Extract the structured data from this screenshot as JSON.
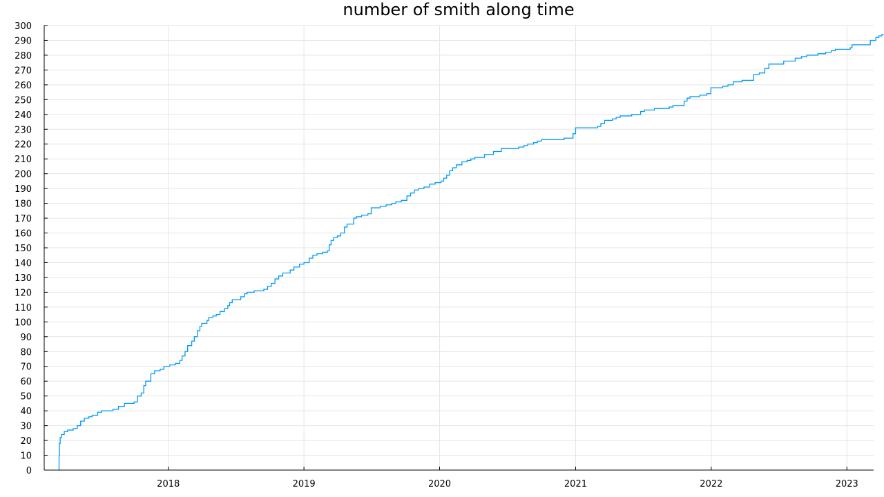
{
  "chart_data": {
    "type": "line",
    "title": "number of smith along time",
    "xlabel": "",
    "ylabel": "",
    "x_tick_labels": [
      "2018",
      "2019",
      "2020",
      "2021",
      "2022",
      "2023"
    ],
    "y_tick_labels": [
      "0",
      "10",
      "20",
      "30",
      "40",
      "50",
      "60",
      "70",
      "80",
      "90",
      "100",
      "110",
      "120",
      "130",
      "140",
      "150",
      "160",
      "170",
      "180",
      "190",
      "200",
      "210",
      "220",
      "230",
      "240",
      "250",
      "260",
      "270",
      "280",
      "290",
      "300"
    ],
    "ylim": [
      0,
      300
    ],
    "xlim": [
      "2017-02-01",
      "2023-03-14"
    ],
    "grid": true,
    "legend": "none",
    "step": true,
    "series": [
      {
        "color": "#009af9",
        "points": [
          [
            "2017-03-12",
            0
          ],
          [
            "2017-03-13",
            10
          ],
          [
            "2017-03-14",
            18
          ],
          [
            "2017-03-16",
            22
          ],
          [
            "2017-03-20",
            24
          ],
          [
            "2017-03-27",
            26
          ],
          [
            "2017-04-05",
            27
          ],
          [
            "2017-04-20",
            28
          ],
          [
            "2017-05-01",
            30
          ],
          [
            "2017-05-10",
            33
          ],
          [
            "2017-05-20",
            35
          ],
          [
            "2017-06-01",
            36
          ],
          [
            "2017-06-10",
            37
          ],
          [
            "2017-06-25",
            39
          ],
          [
            "2017-07-05",
            40
          ],
          [
            "2017-08-05",
            41
          ],
          [
            "2017-08-20",
            43
          ],
          [
            "2017-09-05",
            45
          ],
          [
            "2017-09-25",
            45
          ],
          [
            "2017-10-01",
            46
          ],
          [
            "2017-10-10",
            50
          ],
          [
            "2017-10-20",
            52
          ],
          [
            "2017-10-27",
            57
          ],
          [
            "2017-11-01",
            60
          ],
          [
            "2017-11-12",
            60
          ],
          [
            "2017-11-15",
            65
          ],
          [
            "2017-11-25",
            67
          ],
          [
            "2017-12-10",
            68
          ],
          [
            "2017-12-20",
            70
          ],
          [
            "2018-01-05",
            71
          ],
          [
            "2018-01-20",
            72
          ],
          [
            "2018-02-01",
            74
          ],
          [
            "2018-02-07",
            77
          ],
          [
            "2018-02-15",
            80
          ],
          [
            "2018-02-22",
            84
          ],
          [
            "2018-03-05",
            87
          ],
          [
            "2018-03-12",
            90
          ],
          [
            "2018-03-20",
            94
          ],
          [
            "2018-03-27",
            97
          ],
          [
            "2018-04-01",
            99
          ],
          [
            "2018-04-15",
            101
          ],
          [
            "2018-04-20",
            103
          ],
          [
            "2018-05-01",
            104
          ],
          [
            "2018-05-10",
            105
          ],
          [
            "2018-05-20",
            107
          ],
          [
            "2018-06-01",
            109
          ],
          [
            "2018-06-10",
            111
          ],
          [
            "2018-06-15",
            113
          ],
          [
            "2018-06-22",
            115
          ],
          [
            "2018-07-15",
            117
          ],
          [
            "2018-07-25",
            119
          ],
          [
            "2018-08-01",
            120
          ],
          [
            "2018-08-20",
            121
          ],
          [
            "2018-09-15",
            122
          ],
          [
            "2018-09-25",
            124
          ],
          [
            "2018-10-05",
            126
          ],
          [
            "2018-10-15",
            129
          ],
          [
            "2018-10-25",
            131
          ],
          [
            "2018-11-05",
            133
          ],
          [
            "2018-11-25",
            135
          ],
          [
            "2018-12-05",
            137
          ],
          [
            "2018-12-20",
            139
          ],
          [
            "2019-01-01",
            140
          ],
          [
            "2019-01-15",
            143
          ],
          [
            "2019-01-25",
            145
          ],
          [
            "2019-02-05",
            146
          ],
          [
            "2019-02-20",
            147
          ],
          [
            "2019-03-05",
            148
          ],
          [
            "2019-03-10",
            152
          ],
          [
            "2019-03-15",
            155
          ],
          [
            "2019-03-22",
            157
          ],
          [
            "2019-04-01",
            158
          ],
          [
            "2019-04-10",
            160
          ],
          [
            "2019-04-20",
            164
          ],
          [
            "2019-04-27",
            166
          ],
          [
            "2019-05-15",
            170
          ],
          [
            "2019-05-22",
            171
          ],
          [
            "2019-06-05",
            172
          ],
          [
            "2019-06-22",
            173
          ],
          [
            "2019-07-01",
            177
          ],
          [
            "2019-07-25",
            178
          ],
          [
            "2019-08-10",
            179
          ],
          [
            "2019-08-25",
            180
          ],
          [
            "2019-09-05",
            181
          ],
          [
            "2019-09-20",
            182
          ],
          [
            "2019-10-05",
            185
          ],
          [
            "2019-10-15",
            187
          ],
          [
            "2019-10-25",
            189
          ],
          [
            "2019-11-05",
            190
          ],
          [
            "2019-11-20",
            191
          ],
          [
            "2019-12-05",
            193
          ],
          [
            "2019-12-20",
            194
          ],
          [
            "2020-01-05",
            195
          ],
          [
            "2020-01-12",
            197
          ],
          [
            "2020-01-20",
            199
          ],
          [
            "2020-01-28",
            202
          ],
          [
            "2020-02-05",
            204
          ],
          [
            "2020-02-15",
            206
          ],
          [
            "2020-03-01",
            208
          ],
          [
            "2020-03-15",
            209
          ],
          [
            "2020-03-25",
            210
          ],
          [
            "2020-04-05",
            211
          ],
          [
            "2020-05-01",
            213
          ],
          [
            "2020-05-25",
            215
          ],
          [
            "2020-06-15",
            217
          ],
          [
            "2020-07-25",
            217
          ],
          [
            "2020-08-01",
            218
          ],
          [
            "2020-08-15",
            219
          ],
          [
            "2020-08-25",
            220
          ],
          [
            "2020-09-10",
            221
          ],
          [
            "2020-09-20",
            222
          ],
          [
            "2020-10-01",
            223
          ],
          [
            "2020-12-01",
            224
          ],
          [
            "2020-12-25",
            227
          ],
          [
            "2021-01-01",
            231
          ],
          [
            "2021-03-01",
            232
          ],
          [
            "2021-03-10",
            234
          ],
          [
            "2021-03-20",
            236
          ],
          [
            "2021-04-10",
            237
          ],
          [
            "2021-04-20",
            238
          ],
          [
            "2021-05-01",
            239
          ],
          [
            "2021-06-01",
            240
          ],
          [
            "2021-06-25",
            242
          ],
          [
            "2021-07-05",
            243
          ],
          [
            "2021-08-01",
            244
          ],
          [
            "2021-09-10",
            245
          ],
          [
            "2021-09-20",
            246
          ],
          [
            "2021-10-20",
            249
          ],
          [
            "2021-10-28",
            251
          ],
          [
            "2021-11-05",
            252
          ],
          [
            "2021-12-01",
            253
          ],
          [
            "2021-12-20",
            254
          ],
          [
            "2021-12-31",
            258
          ],
          [
            "2022-02-01",
            259
          ],
          [
            "2022-02-15",
            260
          ],
          [
            "2022-03-01",
            262
          ],
          [
            "2022-03-25",
            263
          ],
          [
            "2022-04-25",
            267
          ],
          [
            "2022-05-10",
            268
          ],
          [
            "2022-05-25",
            271
          ],
          [
            "2022-06-05",
            274
          ],
          [
            "2022-07-15",
            276
          ],
          [
            "2022-08-15",
            278
          ],
          [
            "2022-09-01",
            279
          ],
          [
            "2022-09-15",
            280
          ],
          [
            "2022-10-15",
            281
          ],
          [
            "2022-11-05",
            282
          ],
          [
            "2022-11-20",
            283
          ],
          [
            "2022-12-01",
            284
          ],
          [
            "2023-01-10",
            285
          ],
          [
            "2023-01-15",
            287
          ],
          [
            "2023-03-05",
            290
          ],
          [
            "2023-03-20",
            292
          ],
          [
            "2023-03-28",
            293
          ],
          [
            "2023-04-05",
            294
          ],
          [
            "2023-04-10",
            294
          ]
        ]
      }
    ]
  }
}
